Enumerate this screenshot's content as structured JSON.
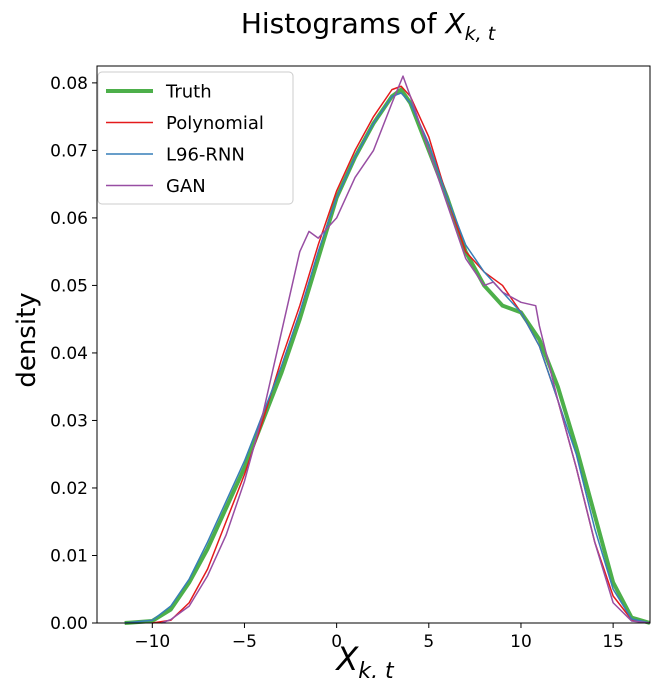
{
  "chart_data": {
    "type": "line",
    "title": "Histograms of X_{k,t}",
    "title_main": "Histograms of ",
    "title_var": "X",
    "title_sub": "k, t",
    "xlabel_var": "X",
    "xlabel_sub": "k, t",
    "ylabel": "density",
    "xlim": [
      -13,
      17
    ],
    "ylim": [
      0,
      0.0825
    ],
    "xticks": [
      -10,
      -5,
      0,
      5,
      10,
      15
    ],
    "xtick_labels": [
      "−10",
      "−5",
      "0",
      "5",
      "10",
      "15"
    ],
    "yticks": [
      0,
      0.01,
      0.02,
      0.03,
      0.04,
      0.05,
      0.06,
      0.07,
      0.08
    ],
    "ytick_labels": [
      "0.00",
      "0.01",
      "0.02",
      "0.03",
      "0.04",
      "0.05",
      "0.06",
      "0.07",
      "0.08"
    ],
    "grid": false,
    "legend_position": "upper-left",
    "series": [
      {
        "name": "Truth",
        "color": "#4daf4a",
        "linewidth": 4,
        "points": [
          [
            -11.5,
            0
          ],
          [
            -10,
            0.0003
          ],
          [
            -9,
            0.002
          ],
          [
            -8,
            0.006
          ],
          [
            -7,
            0.011
          ],
          [
            -6,
            0.017
          ],
          [
            -5,
            0.023
          ],
          [
            -4,
            0.03
          ],
          [
            -3,
            0.037
          ],
          [
            -2,
            0.045
          ],
          [
            -1,
            0.054
          ],
          [
            0,
            0.063
          ],
          [
            1,
            0.069
          ],
          [
            2,
            0.074
          ],
          [
            3,
            0.078
          ],
          [
            3.5,
            0.079
          ],
          [
            4,
            0.077
          ],
          [
            5,
            0.07
          ],
          [
            6,
            0.063
          ],
          [
            7,
            0.055
          ],
          [
            8,
            0.05
          ],
          [
            9,
            0.047
          ],
          [
            10,
            0.046
          ],
          [
            11,
            0.042
          ],
          [
            12,
            0.035
          ],
          [
            13,
            0.026
          ],
          [
            14,
            0.016
          ],
          [
            15,
            0.006
          ],
          [
            16,
            0.0008
          ],
          [
            17,
            0
          ]
        ]
      },
      {
        "name": "Polynomial",
        "color": "#e41a1c",
        "linewidth": 1.5,
        "points": [
          [
            -10,
            0
          ],
          [
            -9,
            0.0004
          ],
          [
            -8,
            0.003
          ],
          [
            -7,
            0.008
          ],
          [
            -6,
            0.015
          ],
          [
            -5,
            0.022
          ],
          [
            -4,
            0.03
          ],
          [
            -3,
            0.039
          ],
          [
            -2,
            0.047
          ],
          [
            -1,
            0.056
          ],
          [
            0,
            0.064
          ],
          [
            1,
            0.07
          ],
          [
            2,
            0.075
          ],
          [
            3,
            0.079
          ],
          [
            3.5,
            0.0795
          ],
          [
            4,
            0.078
          ],
          [
            5,
            0.072
          ],
          [
            6,
            0.063
          ],
          [
            7,
            0.055
          ],
          [
            8,
            0.052
          ],
          [
            9,
            0.05
          ],
          [
            10,
            0.046
          ],
          [
            11,
            0.041
          ],
          [
            12,
            0.033
          ],
          [
            13,
            0.023
          ],
          [
            14,
            0.012
          ],
          [
            15,
            0.004
          ],
          [
            16,
            0.0005
          ],
          [
            17,
            0
          ]
        ]
      },
      {
        "name": "L96-RNN",
        "color": "#377eb8",
        "linewidth": 1.5,
        "points": [
          [
            -11.5,
            0
          ],
          [
            -10,
            0.0004
          ],
          [
            -9,
            0.0025
          ],
          [
            -8,
            0.0065
          ],
          [
            -7,
            0.012
          ],
          [
            -6,
            0.018
          ],
          [
            -5,
            0.024
          ],
          [
            -4,
            0.031
          ],
          [
            -3,
            0.038
          ],
          [
            -2,
            0.046
          ],
          [
            -1,
            0.055
          ],
          [
            0,
            0.063
          ],
          [
            1,
            0.069
          ],
          [
            2,
            0.074
          ],
          [
            3,
            0.078
          ],
          [
            3.5,
            0.0785
          ],
          [
            4,
            0.077
          ],
          [
            5,
            0.071
          ],
          [
            6,
            0.063
          ],
          [
            7,
            0.056
          ],
          [
            8,
            0.052
          ],
          [
            9,
            0.049
          ],
          [
            10,
            0.046
          ],
          [
            11,
            0.041
          ],
          [
            12,
            0.033
          ],
          [
            13,
            0.025
          ],
          [
            14,
            0.014
          ],
          [
            15,
            0.005
          ],
          [
            16,
            0.0006
          ],
          [
            17,
            0
          ]
        ]
      },
      {
        "name": "GAN",
        "color": "#984ea3",
        "linewidth": 1.5,
        "points": [
          [
            -9.5,
            0
          ],
          [
            -9,
            0.0005
          ],
          [
            -8,
            0.0025
          ],
          [
            -7,
            0.007
          ],
          [
            -6,
            0.013
          ],
          [
            -5,
            0.021
          ],
          [
            -4,
            0.031
          ],
          [
            -3,
            0.043
          ],
          [
            -2,
            0.055
          ],
          [
            -1.5,
            0.058
          ],
          [
            -1,
            0.057
          ],
          [
            0,
            0.06
          ],
          [
            1,
            0.066
          ],
          [
            2,
            0.07
          ],
          [
            3,
            0.077
          ],
          [
            3.6,
            0.081
          ],
          [
            4,
            0.078
          ],
          [
            5,
            0.07
          ],
          [
            6,
            0.062
          ],
          [
            7,
            0.054
          ],
          [
            8,
            0.05
          ],
          [
            8.5,
            0.0505
          ],
          [
            9,
            0.049
          ],
          [
            10,
            0.0475
          ],
          [
            10.8,
            0.047
          ],
          [
            11,
            0.044
          ],
          [
            12,
            0.033
          ],
          [
            13,
            0.023
          ],
          [
            14,
            0.012
          ],
          [
            15,
            0.003
          ],
          [
            16,
            0.0003
          ],
          [
            17,
            0
          ]
        ]
      }
    ]
  }
}
